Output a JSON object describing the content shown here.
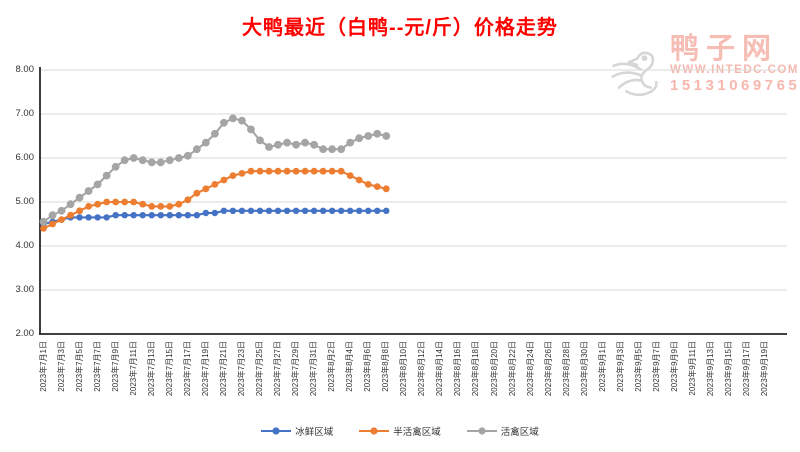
{
  "title": {
    "text": "大鸭最近（白鸭--元/斤）价格走势"
  },
  "colors": {
    "title_red": "#FF0000",
    "grid": "#D9D9D9",
    "axis": "#262626",
    "tick_text": "#333333",
    "watermark_pink": "#F08878",
    "watermark_logo_gray": "#D6D6D6"
  },
  "watermark": {
    "logo_icon": "duck-logo",
    "site_name": "鸭子网",
    "site_url": "WWW.INTEDC.COM",
    "phone": "15131069765"
  },
  "chart_data": {
    "type": "line",
    "title": "大鸭最近（白鸭--元/斤）价格走势",
    "xlabel": "",
    "ylabel": "",
    "ylim": [
      2.0,
      8.0
    ],
    "grid": true,
    "legend_position": "bottom",
    "y_ticks": [
      "8.00",
      "7.00",
      "6.00",
      "5.00",
      "4.00",
      "3.00",
      "2.00"
    ],
    "y_tick_values": [
      8,
      7,
      6,
      5,
      4,
      3,
      2
    ],
    "x_tick_labels": [
      "2023年7月1日",
      "2023年7月3日",
      "2023年7月5日",
      "2023年7月7日",
      "2023年7月9日",
      "2023年7月11日",
      "2023年7月13日",
      "2023年7月15日",
      "2023年7月17日",
      "2023年7月19日",
      "2023年7月21日",
      "2023年7月23日",
      "2023年7月25日",
      "2023年7月27日",
      "2023年7月29日",
      "2023年7月31日",
      "2023年8月2日",
      "2023年8月4日",
      "2023年8月6日",
      "2023年8月8日",
      "2023年8月10日",
      "2023年8月12日",
      "2023年8月14日",
      "2023年8月16日",
      "2023年8月18日",
      "2023年8月20日",
      "2023年8月22日",
      "2023年8月24日",
      "2023年8月26日",
      "2023年8月28日",
      "2023年8月30日",
      "2023年9月1日",
      "2023年9月3日",
      "2023年9月5日",
      "2023年9月7日",
      "2023年9月9日",
      "2023年9月11日",
      "2023年9月13日",
      "2023年9月15日",
      "2023年9月17日",
      "2023年9月19日"
    ],
    "dates": [
      "2023年7月1日",
      "2023年7月2日",
      "2023年7月3日",
      "2023年7月4日",
      "2023年7月5日",
      "2023年7月6日",
      "2023年7月7日",
      "2023年7月8日",
      "2023年7月9日",
      "2023年7月10日",
      "2023年7月11日",
      "2023年7月12日",
      "2023年7月13日",
      "2023年7月14日",
      "2023年7月15日",
      "2023年7月16日",
      "2023年7月17日",
      "2023年7月18日",
      "2023年7月19日",
      "2023年7月20日",
      "2023年7月21日",
      "2023年7月22日",
      "2023年7月23日",
      "2023年7月24日",
      "2023年7月25日",
      "2023年7月26日",
      "2023年7月27日",
      "2023年7月28日",
      "2023年7月29日",
      "2023年7月30日",
      "2023年7月31日",
      "2023年8月1日",
      "2023年8月2日",
      "2023年8月3日",
      "2023年8月4日",
      "2023年8月5日",
      "2023年8月6日",
      "2023年8月7日",
      "2023年8月8日"
    ],
    "series": [
      {
        "name": "冰鲜区域",
        "color": "#4472C4",
        "values": [
          4.5,
          4.55,
          4.6,
          4.65,
          4.65,
          4.65,
          4.65,
          4.65,
          4.7,
          4.7,
          4.7,
          4.7,
          4.7,
          4.7,
          4.7,
          4.7,
          4.7,
          4.7,
          4.75,
          4.75,
          4.8,
          4.8,
          4.8,
          4.8,
          4.8,
          4.8,
          4.8,
          4.8,
          4.8,
          4.8,
          4.8,
          4.8,
          4.8,
          4.8,
          4.8,
          4.8,
          4.8,
          4.8,
          4.8
        ]
      },
      {
        "name": "半活禽区域",
        "color": "#ED7D31",
        "values": [
          4.4,
          4.5,
          4.6,
          4.7,
          4.8,
          4.9,
          4.95,
          5.0,
          5.0,
          5.0,
          5.0,
          4.95,
          4.9,
          4.9,
          4.9,
          4.95,
          5.05,
          5.2,
          5.3,
          5.4,
          5.5,
          5.6,
          5.65,
          5.7,
          5.7,
          5.7,
          5.7,
          5.7,
          5.7,
          5.7,
          5.7,
          5.7,
          5.7,
          5.7,
          5.6,
          5.5,
          5.4,
          5.35,
          5.3
        ]
      },
      {
        "name": "活禽区域",
        "color": "#A5A5A5",
        "values": [
          4.55,
          4.7,
          4.8,
          4.95,
          5.1,
          5.25,
          5.4,
          5.6,
          5.8,
          5.95,
          6.0,
          5.95,
          5.9,
          5.9,
          5.95,
          6.0,
          6.05,
          6.2,
          6.35,
          6.55,
          6.8,
          6.9,
          6.85,
          6.65,
          6.4,
          6.25,
          6.3,
          6.35,
          6.3,
          6.35,
          6.3,
          6.2,
          6.2,
          6.2,
          6.35,
          6.45,
          6.5,
          6.55,
          6.5
        ]
      }
    ]
  }
}
